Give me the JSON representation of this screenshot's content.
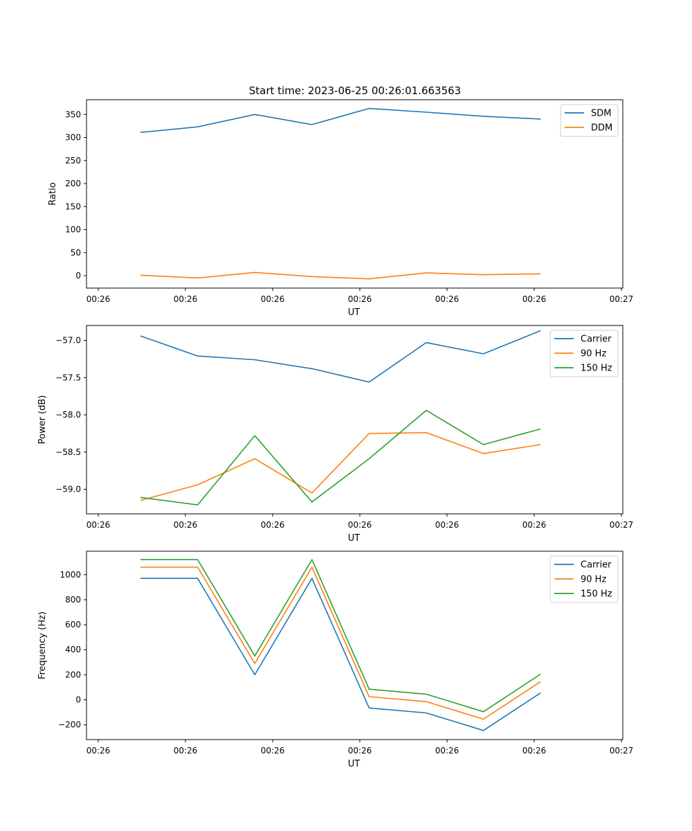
{
  "figure": {
    "title": "Start time: 2023-06-25 00:26:01.663563"
  },
  "colors": {
    "blue": "#1f77b4",
    "orange": "#ff7f0e",
    "green": "#2ca02c"
  },
  "chart_data": [
    {
      "type": "line",
      "title": "Start time: 2023-06-25 00:26:01.663563",
      "xlabel": "UT",
      "ylabel": "Ratio",
      "x_tick_labels": [
        "00:26",
        "00:26",
        "00:26",
        "00:26",
        "00:26",
        "00:26",
        "00:26",
        "00:27"
      ],
      "y_ticks": [
        0,
        50,
        100,
        150,
        200,
        250,
        300,
        350
      ],
      "y_tick_labels": [
        "0",
        "50",
        "100",
        "150",
        "200",
        "250",
        "300",
        "350"
      ],
      "ylim": [
        -27,
        382
      ],
      "x": [
        1,
        2,
        3,
        4,
        5,
        6,
        7,
        8
      ],
      "legend_position": "top-right",
      "grid": false,
      "series": [
        {
          "name": "SDM",
          "color": "blue",
          "values": [
            311,
            323,
            350,
            328,
            363,
            355,
            346,
            340
          ]
        },
        {
          "name": "DDM",
          "color": "orange",
          "values": [
            1,
            -5,
            7,
            -2,
            -7,
            6,
            2,
            4
          ]
        }
      ]
    },
    {
      "type": "line",
      "xlabel": "UT",
      "ylabel": "Power (dB)",
      "x_tick_labels": [
        "00:26",
        "00:26",
        "00:26",
        "00:26",
        "00:26",
        "00:26",
        "00:26",
        "00:27"
      ],
      "y_ticks": [
        -59.0,
        -58.5,
        -58.0,
        -57.5,
        -57.0
      ],
      "y_tick_labels": [
        "−59.0",
        "−58.5",
        "−58.0",
        "−57.5",
        "−57.0"
      ],
      "ylim": [
        -59.33,
        -56.8
      ],
      "x": [
        1,
        2,
        3,
        4,
        5,
        6,
        7,
        8
      ],
      "legend_position": "top-right",
      "grid": false,
      "series": [
        {
          "name": "Carrier",
          "color": "blue",
          "values": [
            -56.94,
            -57.21,
            -57.26,
            -57.38,
            -57.56,
            -57.03,
            -57.18,
            -56.87
          ]
        },
        {
          "name": "90 Hz",
          "color": "orange",
          "values": [
            -59.15,
            -58.94,
            -58.59,
            -59.05,
            -58.25,
            -58.24,
            -58.52,
            -58.4
          ]
        },
        {
          "name": "150 Hz",
          "color": "green",
          "values": [
            -59.11,
            -59.21,
            -58.28,
            -59.17,
            -58.59,
            -57.94,
            -58.4,
            -58.19
          ]
        }
      ]
    },
    {
      "type": "line",
      "xlabel": "UT",
      "ylabel": "Frequency (Hz)",
      "x_tick_labels": [
        "00:26",
        "00:26",
        "00:26",
        "00:26",
        "00:26",
        "00:26",
        "00:26",
        "00:27"
      ],
      "y_ticks": [
        -200,
        0,
        200,
        400,
        600,
        800,
        1000
      ],
      "y_tick_labels": [
        "−200",
        "0",
        "200",
        "400",
        "600",
        "800",
        "1000"
      ],
      "ylim": [
        -318,
        1187
      ],
      "x": [
        1,
        2,
        3,
        4,
        5,
        6,
        7,
        8
      ],
      "legend_position": "top-right",
      "grid": false,
      "series": [
        {
          "name": "Carrier",
          "color": "blue",
          "values": [
            970,
            970,
            200,
            970,
            -65,
            -105,
            -245,
            55
          ]
        },
        {
          "name": "90 Hz",
          "color": "orange",
          "values": [
            1060,
            1060,
            290,
            1060,
            25,
            -15,
            -155,
            145
          ]
        },
        {
          "name": "150 Hz",
          "color": "green",
          "values": [
            1120,
            1120,
            350,
            1120,
            85,
            45,
            -95,
            205
          ]
        }
      ]
    }
  ]
}
